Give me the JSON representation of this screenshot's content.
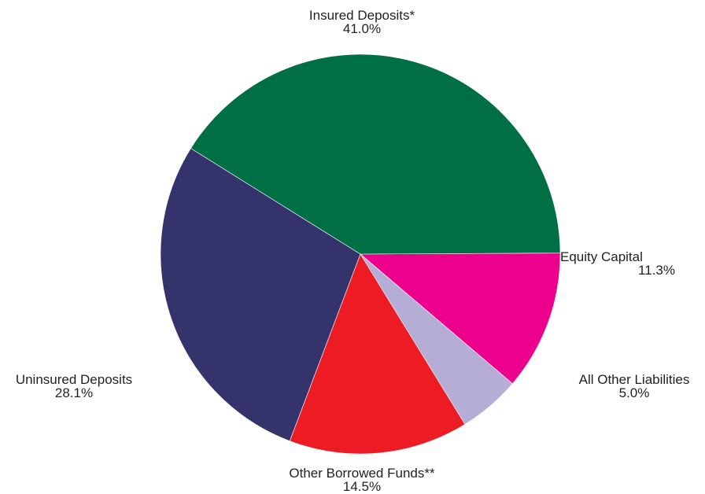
{
  "chart_data": {
    "type": "pie",
    "title": "",
    "slices": [
      {
        "name": "Insured Deposits*",
        "value_label": "41.0%",
        "value": 41.0,
        "color": "#006f46"
      },
      {
        "name": "Equity Capital",
        "value_label": "11.3%",
        "value": 11.3,
        "color": "#ec008c"
      },
      {
        "name": "All Other Liabilities",
        "value_label": "5.0%",
        "value": 5.0,
        "color": "#b5add6"
      },
      {
        "name": "Other Borrowed Funds**",
        "value_label": "14.5%",
        "value": 14.5,
        "color": "#ed1c24"
      },
      {
        "name": "Uninsured Deposits",
        "value_label": "28.1%",
        "value": 28.1,
        "color": "#35336b"
      }
    ]
  }
}
